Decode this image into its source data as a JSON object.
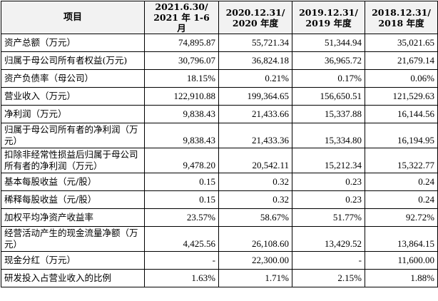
{
  "header": {
    "item": "项目",
    "periods": [
      {
        "line1": "2021.6.30/",
        "line2": "2021 年 1-6 月"
      },
      {
        "line1": "2020.12.31/",
        "line2": "2020 年度"
      },
      {
        "line1": "2019.12.31/",
        "line2": "2019 年度"
      },
      {
        "line1": "2018.12.31/",
        "line2": "2018 年度"
      }
    ]
  },
  "rows": [
    {
      "label": "资产总额（万元）",
      "values": [
        "74,895.87",
        "55,721.34",
        "51,344.94",
        "35,021.65"
      ]
    },
    {
      "label": "归属于母公司所有者权益(万元)",
      "values": [
        "30,796.07",
        "36,824.18",
        "36,965.72",
        "21,679.14"
      ]
    },
    {
      "label": "资产负债率（母公司）",
      "values": [
        "18.15%",
        "0.21%",
        "0.17%",
        "0.06%"
      ]
    },
    {
      "label": "营业收入（万元）",
      "values": [
        "122,910.88",
        "199,364.65",
        "156,650.51",
        "121,529.63"
      ]
    },
    {
      "label": "净利润（万元）",
      "values": [
        "9,838.43",
        "21,433.66",
        "15,337.88",
        "16,144.56"
      ]
    },
    {
      "label": "归属于母公司所有者的净利润（万元）",
      "values": [
        "9,838.43",
        "21,433.36",
        "15,334.80",
        "16,194.95"
      ]
    },
    {
      "label": "扣除非经常性损益后归属于母公司所有者的净利润（万元）",
      "values": [
        "9,478.20",
        "20,542.11",
        "15,212.34",
        "15,322.77"
      ]
    },
    {
      "label": "基本每股收益（元/股）",
      "values": [
        "0.15",
        "0.32",
        "0.23",
        "0.24"
      ]
    },
    {
      "label": "稀释每股收益（元/股）",
      "values": [
        "0.15",
        "0.32",
        "0.23",
        "0.24"
      ]
    },
    {
      "label": "加权平均净资产收益率",
      "values": [
        "23.57%",
        "58.67%",
        "51.77%",
        "92.72%"
      ]
    },
    {
      "label": "经营活动产生的现金流量净额（万元）",
      "values": [
        "4,425.56",
        "26,108.60",
        "13,429.52",
        "13,864.15"
      ]
    },
    {
      "label": "现金分红（万元）",
      "values": [
        "-",
        "22,300.00",
        "-",
        "11,600.00"
      ]
    },
    {
      "label": "研发投入占营业收入的比例",
      "values": [
        "1.63%",
        "1.71%",
        "2.15%",
        "1.88%"
      ]
    }
  ]
}
